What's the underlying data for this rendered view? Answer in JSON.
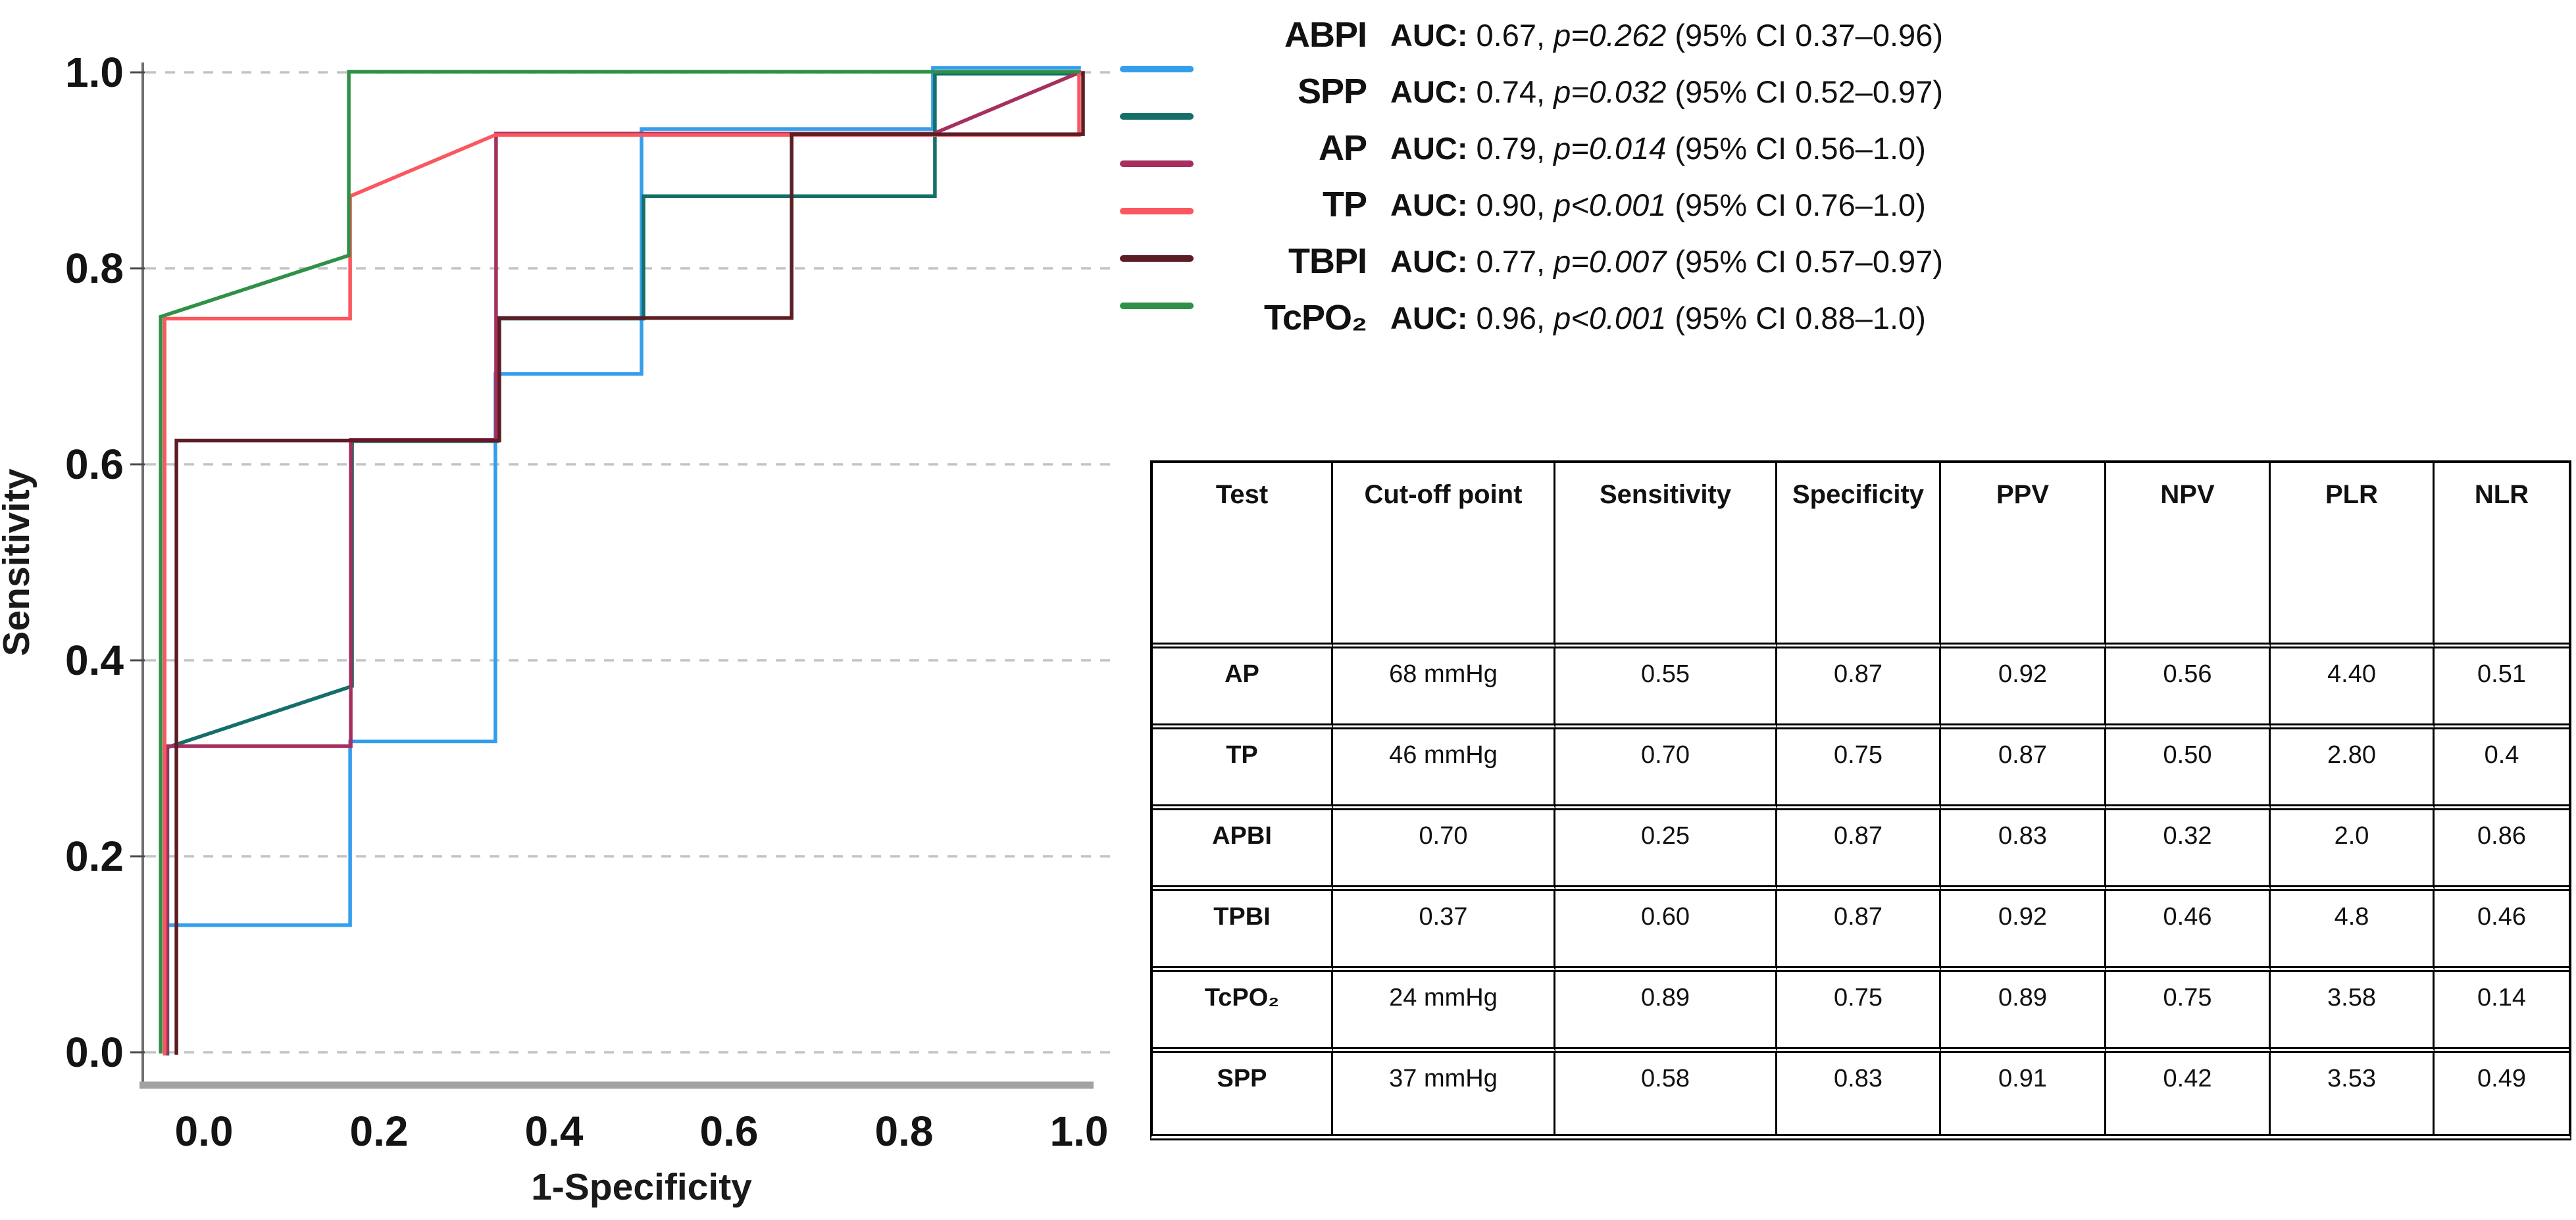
{
  "chart_data": {
    "type": "line",
    "subtype": "roc-curves",
    "title": "",
    "xlabel": "1-Specificity",
    "ylabel": "Sensitivity",
    "xlim": [
      0,
      1
    ],
    "ylim": [
      0,
      1
    ],
    "grid": "horizontal-dashed",
    "legend_position": "top-right",
    "x_ticks": [
      "0.0",
      "0.2",
      "0.4",
      "0.6",
      "0.8",
      "1.0"
    ],
    "y_ticks": [
      "0.0",
      "0.2",
      "0.4",
      "0.6",
      "0.8",
      "1.0"
    ],
    "series": [
      {
        "name": "ABPI",
        "color": "#359EEC",
        "auc": "0.67",
        "p": "p=0.262",
        "ci": "(95% CI 0.37–0.96)",
        "points": [
          [
            0,
            0
          ],
          [
            0,
            0.125
          ],
          [
            0.167,
            0.125
          ],
          [
            0.167,
            0.3125
          ],
          [
            0.333,
            0.3125
          ],
          [
            0.333,
            0.6875
          ],
          [
            0.5,
            0.6875
          ],
          [
            0.5,
            0.9375
          ],
          [
            0.833,
            0.9375
          ],
          [
            0.833,
            1
          ],
          [
            1,
            1
          ]
        ]
      },
      {
        "name": "SPP",
        "color": "#146F68",
        "auc": "0.74",
        "p": "p=0.032",
        "ci": "(95% CI 0.52–0.97)",
        "points": [
          [
            0,
            0
          ],
          [
            0,
            0.3125
          ],
          [
            0.167,
            0.375
          ],
          [
            0.167,
            0.625
          ],
          [
            0.333,
            0.625
          ],
          [
            0.333,
            0.75
          ],
          [
            0.5,
            0.75
          ],
          [
            0.5,
            0.875
          ],
          [
            0.833,
            0.875
          ],
          [
            0.833,
            1
          ],
          [
            1,
            1
          ]
        ]
      },
      {
        "name": "AP",
        "color": "#A72F5F",
        "auc": "0.79",
        "p": "p=0.014",
        "ci": "(95% CI 0.56–1.0)",
        "points": [
          [
            0,
            0
          ],
          [
            0,
            0.3125
          ],
          [
            0.167,
            0.3125
          ],
          [
            0.167,
            0.625
          ],
          [
            0.333,
            0.625
          ],
          [
            0.333,
            0.9375
          ],
          [
            0.833,
            0.9375
          ],
          [
            1,
            1
          ]
        ]
      },
      {
        "name": "TP",
        "color": "#FA575F",
        "auc": "0.90",
        "p": "p<0.001",
        "ci": "(95% CI 0.76–1.0)",
        "points": [
          [
            0,
            0
          ],
          [
            0,
            0.75
          ],
          [
            0.167,
            0.75
          ],
          [
            0.167,
            0.875
          ],
          [
            0.333,
            0.9375
          ],
          [
            1,
            0.9375
          ],
          [
            1,
            1
          ]
        ]
      },
      {
        "name": "TBPI",
        "color": "#5C1D24",
        "auc": "0.77",
        "p": "p=0.007",
        "ci": "(95% CI 0.57–0.97)",
        "points": [
          [
            0,
            0
          ],
          [
            0,
            0.625
          ],
          [
            0.333,
            0.625
          ],
          [
            0.333,
            0.75
          ],
          [
            0.667,
            0.75
          ],
          [
            0.667,
            0.9375
          ],
          [
            1,
            0.9375
          ],
          [
            1,
            1
          ]
        ]
      },
      {
        "name": "TcPO₂",
        "color": "#2F9147",
        "auc": "0.96",
        "p": "p<0.001",
        "ci": "(95% CI 0.88–1.0)",
        "points": [
          [
            0,
            0
          ],
          [
            0,
            0.75
          ],
          [
            0.167,
            0.8125
          ],
          [
            0.167,
            1
          ],
          [
            1,
            1
          ]
        ]
      }
    ]
  },
  "legend": {
    "auc_label": "AUC:"
  },
  "table": {
    "columns": [
      "Test",
      "Cut-off point",
      "Sensitivity",
      "Specificity",
      "PPV",
      "NPV",
      "PLR",
      "NLR"
    ],
    "rows": [
      [
        "AP",
        "68 mmHg",
        "0.55",
        "0.87",
        "0.92",
        "0.56",
        "4.40",
        "0.51"
      ],
      [
        "TP",
        "46 mmHg",
        "0.70",
        "0.75",
        "0.87",
        "0.50",
        "2.80",
        "0.4"
      ],
      [
        "APBI",
        "0.70",
        "0.25",
        "0.87",
        "0.83",
        "0.32",
        "2.0",
        "0.86"
      ],
      [
        "TPBI",
        "0.37",
        "0.60",
        "0.87",
        "0.92",
        "0.46",
        "4.8",
        "0.46"
      ],
      [
        "TcPO₂",
        "24 mmHg",
        "0.89",
        "0.75",
        "0.89",
        "0.75",
        "3.58",
        "0.14"
      ],
      [
        "SPP",
        "37 mmHg",
        "0.58",
        "0.83",
        "0.91",
        "0.42",
        "3.53",
        "0.49"
      ]
    ]
  }
}
